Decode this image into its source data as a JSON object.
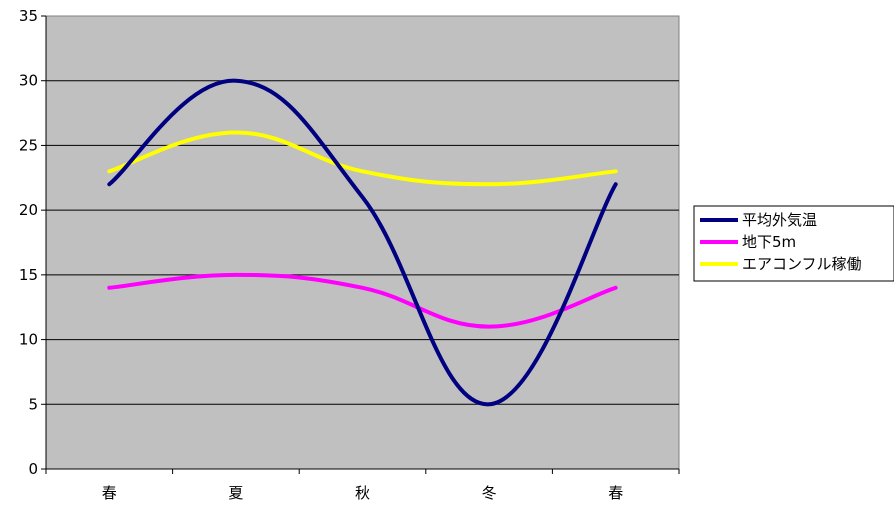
{
  "chart_data": {
    "type": "line",
    "categories": [
      "春",
      "夏",
      "秋",
      "冬",
      "春"
    ],
    "x_positions": [
      0.5,
      1.5,
      2.5,
      3.5,
      4.5
    ],
    "ylim": [
      0,
      35
    ],
    "yticks": [
      0,
      5,
      10,
      15,
      20,
      25,
      30,
      35
    ],
    "grid": true,
    "legend_position": "right",
    "plot_background": "#c0c0c0",
    "series": [
      {
        "name": "平均外気温",
        "values": [
          22,
          30,
          21,
          5,
          22
        ],
        "color": "#000080"
      },
      {
        "name": "地下5m",
        "values": [
          14,
          15,
          14,
          11,
          14
        ],
        "color": "#ff00ff"
      },
      {
        "name": "エアコンフル稼働",
        "values": [
          23,
          26,
          23,
          22,
          23
        ],
        "color": "#ffff00"
      }
    ]
  }
}
